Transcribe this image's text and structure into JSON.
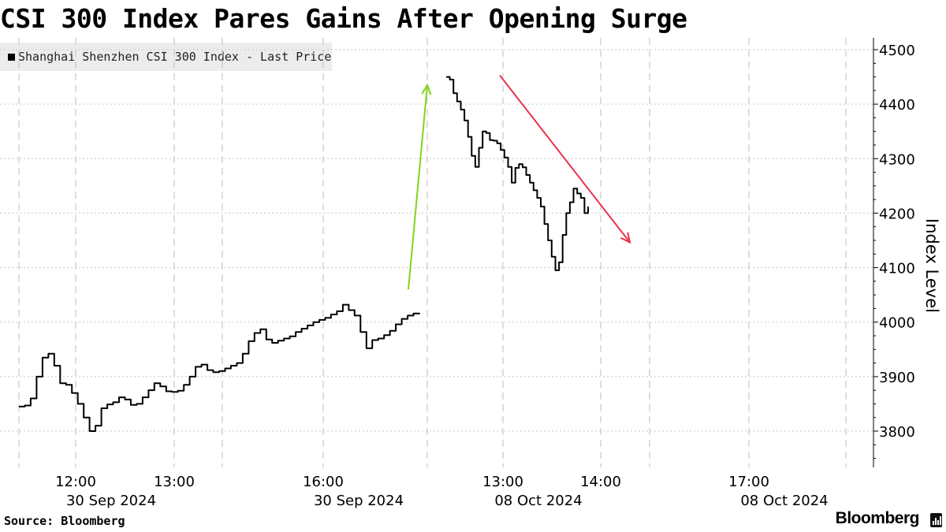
{
  "title": "CSI 300 Index Pares Gains After Opening Surge",
  "source": "Source: Bloomberg",
  "brand": "Bloomberg",
  "colors": {
    "line": "#000000",
    "up_arrow": "#7fd61c",
    "down_arrow": "#e8334a",
    "grid": "#c8c8c8"
  },
  "chart_data": {
    "type": "line",
    "title": "CSI 300 Index Pares Gains After Opening Surge",
    "ylabel": "Index Level",
    "ylim": [
      3740,
      4520
    ],
    "yticks": [
      3800,
      3900,
      4000,
      4100,
      4200,
      4300,
      4400,
      4500
    ],
    "legend": {
      "label": "Shanghai Shenzhen CSI 300 Index - Last Price",
      "placement": "top-left"
    },
    "grid": true,
    "x_ticks": [
      {
        "time": "12:00",
        "date": "30 Sep 2024"
      },
      {
        "time": "13:00",
        "date": ""
      },
      {
        "time": "16:00",
        "date": "30 Sep 2024"
      },
      {
        "time": "13:00",
        "date": "08 Oct 2024"
      },
      {
        "time": "14:00",
        "date": ""
      },
      {
        "time": "17:00",
        "date": "08 Oct 2024"
      }
    ],
    "series": [
      {
        "name": "Shanghai Shenzhen CSI 300 Index - Last Price",
        "segments": [
          {
            "session": "30 Sep 2024",
            "values": [
              3845,
              3847,
              3860,
              3900,
              3935,
              3942,
              3920,
              3888,
              3885,
              3870,
              3850,
              3825,
              3800,
              3810,
              3842,
              3849,
              3853,
              3862,
              3858,
              3848,
              3850,
              3862,
              3875,
              3888,
              3882,
              3873,
              3872,
              3874,
              3885,
              3900,
              3918,
              3922,
              3912,
              3908,
              3910,
              3915,
              3920,
              3925,
              3942,
              3965,
              3980,
              3987,
              3968,
              3962,
              3966,
              3970,
              3974,
              3982,
              3988,
              3994,
              4000,
              4004,
              4008,
              4014,
              4020,
              4032,
              4022,
              4012,
              3982,
              3952,
              3967,
              3970,
              3976,
              3984,
              3996,
              4006,
              4012,
              4016,
              4017
            ]
          },
          {
            "session": "08 Oct 2024",
            "values": [
              4450,
              4445,
              4420,
              4405,
              4390,
              4370,
              4340,
              4305,
              4285,
              4320,
              4350,
              4347,
              4334,
              4333,
              4328,
              4316,
              4302,
              4285,
              4256,
              4283,
              4290,
              4284,
              4270,
              4256,
              4242,
              4228,
              4212,
              4180,
              4150,
              4120,
              4095,
              4110,
              4160,
              4200,
              4220,
              4245,
              4236,
              4228,
              4200,
              4212
            ]
          }
        ]
      }
    ],
    "annotations": [
      {
        "type": "arrow",
        "direction": "up",
        "color": "#7fd61c",
        "from": 4060,
        "to": 4435
      },
      {
        "type": "arrow",
        "direction": "down",
        "color": "#e8334a",
        "from": 4450,
        "to": 4155
      }
    ]
  }
}
